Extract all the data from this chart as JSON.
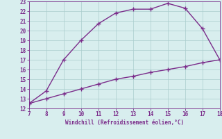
{
  "upper_x": [
    7,
    8,
    9,
    10,
    11,
    12,
    13,
    14,
    15,
    16,
    17,
    18
  ],
  "upper_y": [
    12.5,
    13.8,
    17.0,
    19.0,
    20.7,
    21.8,
    22.2,
    22.2,
    22.8,
    22.3,
    20.2,
    17.0
  ],
  "lower_x": [
    7,
    8,
    9,
    10,
    11,
    12,
    13,
    14,
    15,
    16,
    17,
    18
  ],
  "lower_y": [
    12.5,
    13.0,
    13.5,
    14.0,
    14.5,
    15.0,
    15.3,
    15.7,
    16.0,
    16.3,
    16.7,
    17.0
  ],
  "line_color": "#7b2d8b",
  "bg_color": "#d8eeee",
  "grid_color": "#aacccc",
  "xlabel": "Windchill (Refroidissement éolien,°C)",
  "xlim": [
    7,
    18
  ],
  "ylim": [
    12,
    23
  ],
  "xticks": [
    7,
    8,
    9,
    10,
    11,
    12,
    13,
    14,
    15,
    16,
    17,
    18
  ],
  "yticks": [
    12,
    13,
    14,
    15,
    16,
    17,
    18,
    19,
    20,
    21,
    22,
    23
  ],
  "xlabel_color": "#7b2d8b",
  "tick_color": "#7b2d8b",
  "marker": "+",
  "marker_size": 4,
  "line_width": 1.0
}
